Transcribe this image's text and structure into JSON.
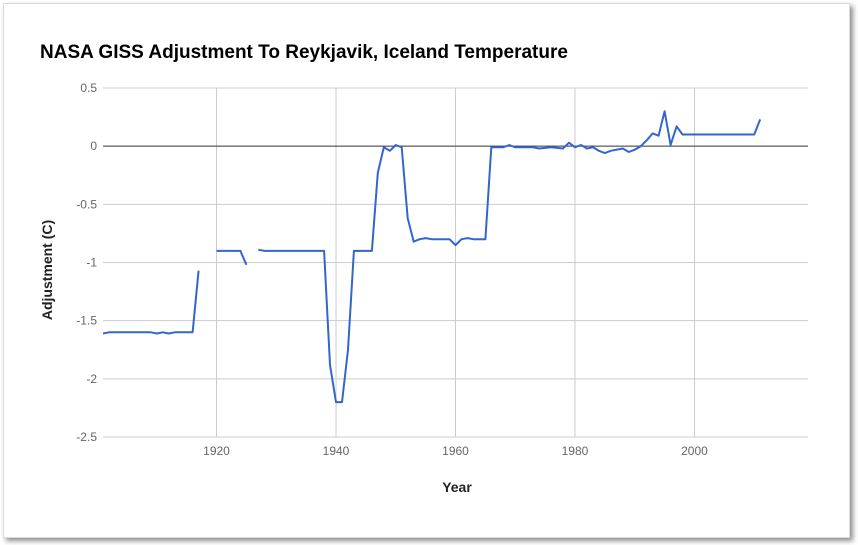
{
  "chart_data": {
    "type": "line",
    "title": "NASA GISS Adjustment To Reykjavik, Iceland Temperature",
    "xlabel": "Year",
    "ylabel": "Adjustment (C)",
    "xlim": [
      1901,
      2019
    ],
    "ylim": [
      -2.5,
      0.5
    ],
    "x_ticks": [
      1920,
      1940,
      1960,
      1980,
      2000
    ],
    "y_ticks": [
      0.5,
      0,
      -0.5,
      -1,
      -1.5,
      -2,
      -2.5
    ],
    "grid": true,
    "legend": "none",
    "line_color": "#3366cc",
    "series": [
      {
        "segments": [
          [
            [
              1901,
              -1.61
            ],
            [
              1902,
              -1.6
            ],
            [
              1903,
              -1.6
            ],
            [
              1905,
              -1.6
            ],
            [
              1907,
              -1.6
            ],
            [
              1909,
              -1.6
            ],
            [
              1910,
              -1.61
            ],
            [
              1911,
              -1.6
            ],
            [
              1912,
              -1.61
            ],
            [
              1913,
              -1.6
            ],
            [
              1915,
              -1.6
            ],
            [
              1916,
              -1.6
            ],
            [
              1917,
              -1.07
            ]
          ],
          [
            [
              1920,
              -0.9
            ],
            [
              1922,
              -0.9
            ],
            [
              1924,
              -0.9
            ],
            [
              1925,
              -1.02
            ]
          ],
          [
            [
              1927,
              -0.89
            ],
            [
              1928,
              -0.9
            ],
            [
              1930,
              -0.9
            ],
            [
              1935,
              -0.9
            ],
            [
              1938,
              -0.9
            ],
            [
              1939,
              -1.88
            ],
            [
              1940,
              -2.2
            ],
            [
              1941,
              -2.2
            ],
            [
              1942,
              -1.75
            ],
            [
              1943,
              -0.9
            ],
            [
              1944,
              -0.9
            ],
            [
              1946,
              -0.9
            ],
            [
              1947,
              -0.23
            ],
            [
              1948,
              -0.01
            ],
            [
              1949,
              -0.04
            ],
            [
              1950,
              0.01
            ],
            [
              1951,
              -0.01
            ],
            [
              1952,
              -0.62
            ],
            [
              1953,
              -0.82
            ],
            [
              1954,
              -0.8
            ],
            [
              1955,
              -0.79
            ],
            [
              1956,
              -0.8
            ],
            [
              1958,
              -0.8
            ],
            [
              1959,
              -0.8
            ],
            [
              1960,
              -0.85
            ],
            [
              1961,
              -0.8
            ],
            [
              1962,
              -0.79
            ],
            [
              1963,
              -0.8
            ],
            [
              1965,
              -0.8
            ],
            [
              1966,
              -0.01
            ],
            [
              1968,
              -0.01
            ],
            [
              1969,
              0.01
            ],
            [
              1970,
              -0.01
            ],
            [
              1972,
              -0.01
            ],
            [
              1973,
              -0.01
            ],
            [
              1974,
              -0.02
            ],
            [
              1976,
              -0.01
            ],
            [
              1978,
              -0.02
            ],
            [
              1979,
              0.03
            ],
            [
              1980,
              -0.01
            ],
            [
              1981,
              0.01
            ],
            [
              1982,
              -0.02
            ],
            [
              1983,
              -0.01
            ],
            [
              1984,
              -0.04
            ],
            [
              1985,
              -0.06
            ],
            [
              1986,
              -0.04
            ],
            [
              1988,
              -0.02
            ],
            [
              1989,
              -0.05
            ],
            [
              1990,
              -0.03
            ],
            [
              1991,
              0.0
            ],
            [
              1992,
              0.05
            ],
            [
              1993,
              0.11
            ],
            [
              1994,
              0.09
            ],
            [
              1995,
              0.3
            ],
            [
              1996,
              0.01
            ],
            [
              1997,
              0.17
            ],
            [
              1998,
              0.1
            ],
            [
              2000,
              0.1
            ],
            [
              2005,
              0.1
            ],
            [
              2010,
              0.1
            ],
            [
              2011,
              0.23
            ]
          ]
        ]
      }
    ]
  }
}
